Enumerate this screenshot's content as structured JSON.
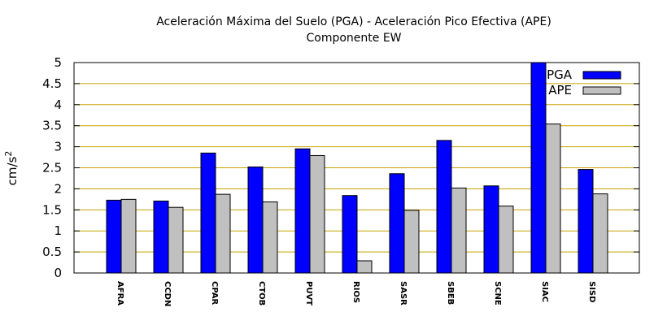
{
  "chart_data": {
    "type": "bar",
    "title": "Aceleración Máxima del Suelo (PGA) -  Aceleración Pico Efectiva (APE)",
    "subtitle": "Componente EW",
    "xlabel": "",
    "ylabel": "cm/s",
    "ylabel_superscript": "2",
    "ylim": [
      0,
      5
    ],
    "yticks": [
      0,
      0.5,
      1,
      1.5,
      2,
      2.5,
      3,
      3.5,
      4,
      4.5,
      5
    ],
    "ytick_labels": [
      "0",
      "0.5",
      "1",
      "1.5",
      "2",
      "2.5",
      "3",
      "3.5",
      "4",
      "4.5",
      "5"
    ],
    "grid": "horizontal",
    "legend_position": "top-right",
    "categories": [
      "AFRA",
      "CCDN",
      "CPAR",
      "CTOB",
      "PUVT",
      "RIOS",
      "SASR",
      "SBEB",
      "SCNE",
      "SIAC",
      "SISD"
    ],
    "series": [
      {
        "name": "PGA",
        "color": "#0000ff",
        "values": [
          1.73,
          1.71,
          2.85,
          2.52,
          2.95,
          1.84,
          2.36,
          3.15,
          2.07,
          5.0,
          2.46
        ]
      },
      {
        "name": "APE",
        "color": "#c0c0c0",
        "values": [
          1.75,
          1.56,
          1.87,
          1.69,
          2.79,
          0.29,
          1.49,
          2.02,
          1.59,
          3.54,
          1.88
        ]
      }
    ],
    "grid_color": "#c8a200"
  }
}
